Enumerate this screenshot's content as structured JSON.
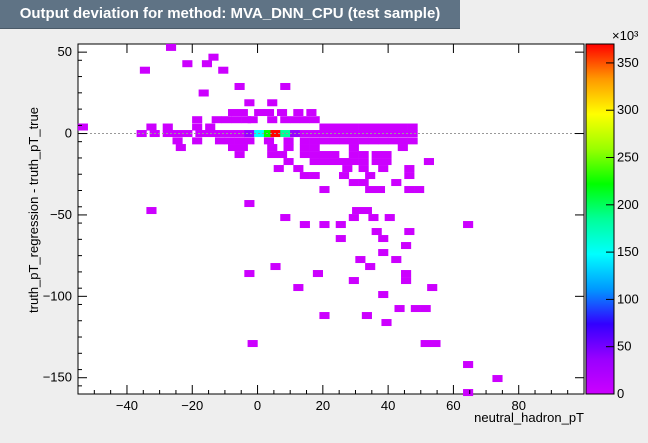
{
  "chart_data": {
    "type": "heatmap",
    "title": "Output deviation for method: MVA_DNN_CPU (test sample)",
    "xlabel": "neutral_hadron_pT",
    "ylabel": "truth_pT_regression - truth_pT_true",
    "xlim": [
      -55,
      100
    ],
    "ylim": [
      -160,
      55
    ],
    "xticks": [
      -40,
      -20,
      0,
      20,
      40,
      60,
      80
    ],
    "yticks": [
      50,
      0,
      -50,
      -100,
      -150
    ],
    "colorbar": {
      "multiplier": "×10³",
      "range": [
        0,
        370
      ],
      "ticks": [
        0,
        50,
        100,
        150,
        200,
        250,
        300,
        350
      ]
    },
    "reference_line_y": 0,
    "bin_size": [
      3.1,
      4.3
    ],
    "cells": [
      [
        -26.5,
        52.9,
        1
      ],
      [
        -34.5,
        38.9,
        1
      ],
      [
        -21.5,
        42.9,
        1
      ],
      [
        -15.5,
        42.9,
        1
      ],
      [
        -13.5,
        46.9,
        1
      ],
      [
        -10.5,
        38.9,
        1
      ],
      [
        -16.5,
        24.9,
        1
      ],
      [
        -5.5,
        28.9,
        1
      ],
      [
        8.5,
        28.9,
        1
      ],
      [
        -2.5,
        18.9,
        1
      ],
      [
        4.5,
        18.9,
        1
      ],
      [
        -53.5,
        4.0,
        1
      ],
      [
        -32.5,
        4.0,
        1
      ],
      [
        -27.5,
        4.0,
        1
      ],
      [
        -18.5,
        4.0,
        1
      ],
      [
        -14.5,
        4.0,
        1
      ],
      [
        -18.5,
        8.5,
        1
      ],
      [
        -12.5,
        8.5,
        1
      ],
      [
        -9.5,
        8.5,
        1
      ],
      [
        -6.5,
        8.5,
        1
      ],
      [
        -3.5,
        8.5,
        1
      ],
      [
        -1.5,
        8.5,
        1
      ],
      [
        4.5,
        8.5,
        1
      ],
      [
        8.5,
        8.5,
        1
      ],
      [
        11.5,
        8.5,
        1
      ],
      [
        14.5,
        8.5,
        1
      ],
      [
        17.5,
        8.5,
        1
      ],
      [
        -7.5,
        12.9,
        1
      ],
      [
        -4.5,
        12.9,
        1
      ],
      [
        0.5,
        12.9,
        1
      ],
      [
        3.5,
        12.9,
        1
      ],
      [
        7.5,
        12.9,
        1
      ],
      [
        12.5,
        12.9,
        1
      ],
      [
        16.5,
        12.9,
        1
      ],
      [
        -35.5,
        0,
        1
      ],
      [
        -31.5,
        0,
        1
      ],
      [
        -27.5,
        0,
        1
      ],
      [
        -24.5,
        0,
        1
      ],
      [
        -21.5,
        0,
        1
      ],
      [
        -17.5,
        0,
        1
      ],
      [
        -14.5,
        0,
        1
      ],
      [
        -11.5,
        0,
        1
      ],
      [
        -8.5,
        0,
        1
      ],
      [
        -5.5,
        0,
        1
      ],
      [
        -2.5,
        0,
        60
      ],
      [
        0.5,
        0,
        150
      ],
      [
        3.5,
        0,
        240
      ],
      [
        5.5,
        0,
        370
      ],
      [
        8.5,
        0,
        190
      ],
      [
        11.5,
        0,
        60
      ],
      [
        14.5,
        0,
        1
      ],
      [
        17.5,
        0,
        1
      ],
      [
        20.5,
        0,
        1
      ],
      [
        23.5,
        0,
        1
      ],
      [
        26.5,
        0,
        1
      ],
      [
        29.5,
        0,
        1
      ],
      [
        32.5,
        0,
        1
      ],
      [
        35.5,
        0,
        1
      ],
      [
        38.5,
        0,
        1
      ],
      [
        41.5,
        0,
        1
      ],
      [
        44.5,
        0,
        1
      ],
      [
        47.5,
        0,
        1
      ],
      [
        20.5,
        4.0,
        1
      ],
      [
        23.5,
        4.0,
        1
      ],
      [
        26.5,
        4.0,
        1
      ],
      [
        29.5,
        4.0,
        1
      ],
      [
        32.5,
        4.0,
        1
      ],
      [
        35.5,
        4.0,
        1
      ],
      [
        38.5,
        4.0,
        1
      ],
      [
        41.5,
        4.0,
        1
      ],
      [
        44.5,
        4.0,
        1
      ],
      [
        47.5,
        4.0,
        1
      ],
      [
        -24.5,
        -4.5,
        1
      ],
      [
        -18.5,
        -4.5,
        1
      ],
      [
        -11.5,
        -4.5,
        1
      ],
      [
        -8.5,
        -4.5,
        1
      ],
      [
        -5.5,
        -4.5,
        1
      ],
      [
        -2.5,
        -4.5,
        1
      ],
      [
        3.5,
        -4.5,
        1
      ],
      [
        9.5,
        -4.5,
        1
      ],
      [
        14.5,
        -4.5,
        1
      ],
      [
        17.5,
        -4.5,
        1
      ],
      [
        20.5,
        -4.5,
        1
      ],
      [
        23.5,
        -4.5,
        1
      ],
      [
        26.5,
        -4.5,
        1
      ],
      [
        29.5,
        -4.5,
        1
      ],
      [
        32.5,
        -4.5,
        1
      ],
      [
        35.5,
        -4.5,
        1
      ],
      [
        38.5,
        -4.5,
        1
      ],
      [
        41.5,
        -4.5,
        1
      ],
      [
        44.5,
        -4.5,
        1
      ],
      [
        47.5,
        -4.5,
        1
      ],
      [
        -23.5,
        -8.6,
        1
      ],
      [
        -7.5,
        -8.6,
        1
      ],
      [
        -4.5,
        -8.6,
        1
      ],
      [
        4.5,
        -8.6,
        1
      ],
      [
        9.5,
        -8.6,
        1
      ],
      [
        14.5,
        -8.6,
        1
      ],
      [
        17.5,
        -8.6,
        1
      ],
      [
        29.5,
        -8.6,
        1
      ],
      [
        44.5,
        -8.6,
        1
      ],
      [
        -5.5,
        -12.9,
        1
      ],
      [
        4.5,
        -12.9,
        1
      ],
      [
        7.5,
        -12.9,
        1
      ],
      [
        14.5,
        -12.9,
        1
      ],
      [
        17.5,
        -12.9,
        1
      ],
      [
        20.5,
        -12.9,
        1
      ],
      [
        23.5,
        -12.9,
        1
      ],
      [
        29.5,
        -12.9,
        1
      ],
      [
        32.5,
        -12.9,
        1
      ],
      [
        36.5,
        -12.9,
        1
      ],
      [
        39.5,
        -12.9,
        1
      ],
      [
        9.5,
        -17.2,
        1
      ],
      [
        17.5,
        -17.2,
        1
      ],
      [
        20.5,
        -17.2,
        1
      ],
      [
        23.5,
        -17.2,
        1
      ],
      [
        26.5,
        -17.2,
        1
      ],
      [
        29.5,
        -17.2,
        1
      ],
      [
        32.5,
        -17.2,
        1
      ],
      [
        36.5,
        -17.2,
        1
      ],
      [
        39.5,
        -17.2,
        1
      ],
      [
        52.5,
        -17.2,
        1
      ],
      [
        6.5,
        -21.5,
        1
      ],
      [
        12.5,
        -21.5,
        1
      ],
      [
        27.5,
        -21.5,
        1
      ],
      [
        32.5,
        -21.5,
        1
      ],
      [
        38.5,
        -21.5,
        1
      ],
      [
        46.5,
        -21.5,
        1
      ],
      [
        14.5,
        -25.8,
        1
      ],
      [
        17.5,
        -25.8,
        1
      ],
      [
        26.5,
        -25.8,
        1
      ],
      [
        34.5,
        -25.8,
        1
      ],
      [
        46.5,
        -25.8,
        1
      ],
      [
        20.5,
        -34.4,
        1
      ],
      [
        29.5,
        -30.1,
        1
      ],
      [
        32.5,
        -30.1,
        1
      ],
      [
        34.5,
        -34.4,
        1
      ],
      [
        37.5,
        -34.4,
        1
      ],
      [
        42.5,
        -30.1,
        1
      ],
      [
        46.5,
        -34.4,
        1
      ],
      [
        49.5,
        -34.4,
        1
      ],
      [
        -2.5,
        -43.0,
        1
      ],
      [
        30.5,
        -47.3,
        1
      ],
      [
        33.5,
        -47.3,
        1
      ],
      [
        -32.5,
        -47.3,
        1
      ],
      [
        8.5,
        -51.6,
        1
      ],
      [
        14.5,
        -55.9,
        1
      ],
      [
        29.5,
        -51.6,
        1
      ],
      [
        35.5,
        -51.6,
        1
      ],
      [
        40.5,
        -51.6,
        1
      ],
      [
        20.5,
        -55.9,
        1
      ],
      [
        25.5,
        -55.9,
        1
      ],
      [
        36.5,
        -60.2,
        1
      ],
      [
        46.5,
        -60.2,
        1
      ],
      [
        64.5,
        -55.9,
        1
      ],
      [
        25.5,
        -64.5,
        1
      ],
      [
        38.5,
        -64.5,
        1
      ],
      [
        45.5,
        -68.8,
        1
      ],
      [
        38.5,
        -73.1,
        1
      ],
      [
        31.5,
        -77.4,
        1
      ],
      [
        42.5,
        -77.4,
        1
      ],
      [
        5.5,
        -81.7,
        1
      ],
      [
        34.5,
        -81.7,
        1
      ],
      [
        -2.5,
        -86.0,
        1
      ],
      [
        18.5,
        -86.0,
        1
      ],
      [
        29.5,
        -90.3,
        1
      ],
      [
        45.5,
        -86.0,
        1
      ],
      [
        12.5,
        -94.6,
        1
      ],
      [
        45.5,
        -90.3,
        1
      ],
      [
        53.5,
        -94.6,
        1
      ],
      [
        38.5,
        -98.9,
        1
      ],
      [
        43.5,
        -107.5,
        1
      ],
      [
        48.5,
        -107.5,
        1
      ],
      [
        51.5,
        -107.5,
        1
      ],
      [
        20.5,
        -111.8,
        1
      ],
      [
        33.5,
        -111.8,
        1
      ],
      [
        39.5,
        -116.1,
        1
      ],
      [
        -1.5,
        -129.0,
        1
      ],
      [
        51.5,
        -129.0,
        1
      ],
      [
        54.5,
        -129.0,
        1
      ],
      [
        64.5,
        -141.9,
        1
      ],
      [
        73.5,
        -150.5,
        1
      ],
      [
        64.5,
        -159.1,
        1
      ]
    ]
  }
}
